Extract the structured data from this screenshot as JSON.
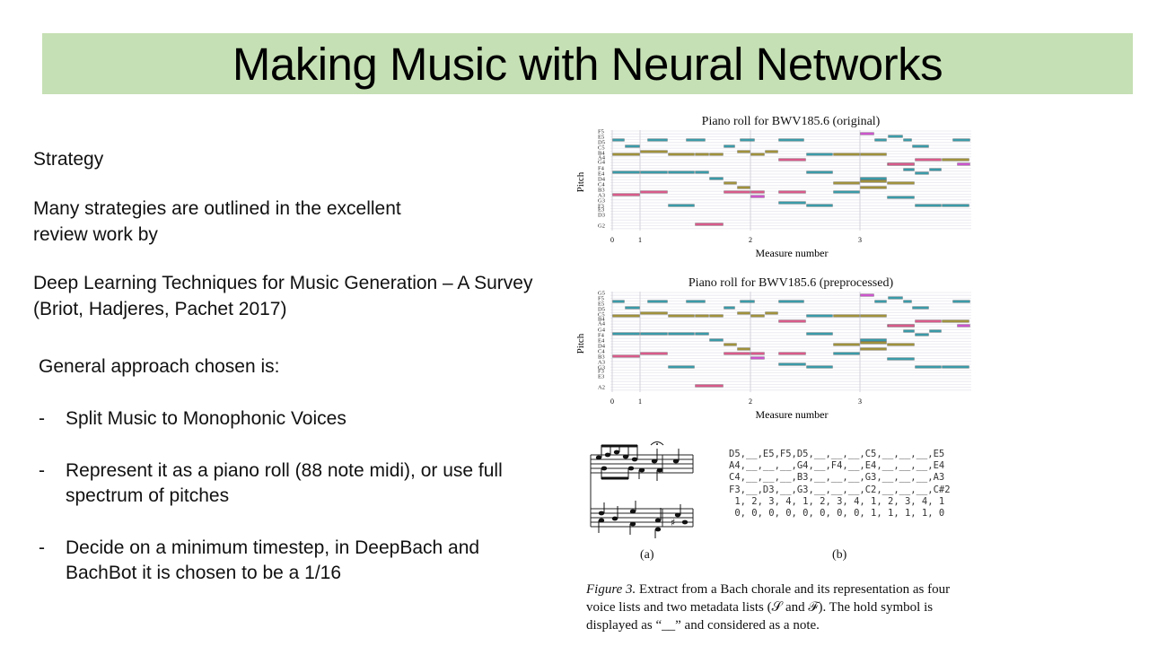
{
  "slide": {
    "title": "Making Music with Neural Networks",
    "strategy_heading": "Strategy",
    "intro_line1": "Many strategies are outlined in the excellent",
    "intro_line2": "review work by",
    "reference_line1": "Deep Learning Techniques for Music Generation – A Survey",
    "reference_line2": "(Briot, Hadjeres, Pachet 2017)",
    "approach_heading": "General approach chosen is:",
    "bullets": [
      {
        "dash": "-",
        "line1": "Split Music to Monophonic Voices",
        "line2": ""
      },
      {
        "dash": "-",
        "line1": "Represent it as a piano roll (88 note midi), or use full",
        "line2": "spectrum of pitches"
      },
      {
        "dash": "-",
        "line1": "Decide on a minimum timestep, in DeepBach and",
        "line2": "BachBot it is chosen to be a 1/16"
      }
    ]
  },
  "figure": {
    "roll_original": {
      "title": "Piano roll for BWV185.6 (original)",
      "xlabel": "Measure number",
      "ylabel": "Pitch",
      "pitch_labels": [
        "F5",
        "E5",
        "D5",
        "C5",
        "B4",
        "A4",
        "G4",
        "F4",
        "E4",
        "D4",
        "C4",
        "B3",
        "A3",
        "G3",
        "F3",
        "E3",
        "D3",
        "G2"
      ],
      "x_ticks": [
        "0",
        "1",
        "2",
        "3"
      ]
    },
    "roll_preprocessed": {
      "title": "Piano roll for BWV185.6 (preprocessed)",
      "xlabel": "Measure number",
      "ylabel": "Pitch",
      "pitch_labels": [
        "G5",
        "F5",
        "E5",
        "D5",
        "C5",
        "B4",
        "A4",
        "G4",
        "F4",
        "E4",
        "D4",
        "C4",
        "B3",
        "A3",
        "G3",
        "F3",
        "E3",
        "A2"
      ],
      "x_ticks": [
        "0",
        "1",
        "2",
        "3"
      ]
    },
    "label_a": "(a)",
    "label_b": "(b)",
    "voice_lists": [
      "D5,__,E5,F5,D5,__,__,__,C5,__,__,__,E5",
      "A4,__,__,__,G4,__,F4,__,E4,__,__,__,E4",
      "C4,__,__,__,B3,__,__,__,G3,__,__,__,A3",
      "F3,__,D3,__,G3,__,__,__,C2,__,__,__,C#2",
      " 1, 2, 3, 4, 1, 2, 3, 4, 1, 2, 3, 4, 1",
      " 0, 0, 0, 0, 0, 0, 0, 0, 1, 1, 1, 1, 0"
    ],
    "caption_fig": "Figure 3.",
    "caption_text": " Extract from a Bach chorale and its representation as four voice lists and two metadata lists (𝒮 and ℱ). The hold symbol is displayed as “__” and considered as a note.",
    "colors": {
      "teal": "#3a9aa8",
      "olive": "#a0913c",
      "pink": "#d85a8a",
      "magenta": "#cc55cc",
      "grid": "#e8e8ef",
      "title_bar": "#c5e0b4"
    }
  }
}
